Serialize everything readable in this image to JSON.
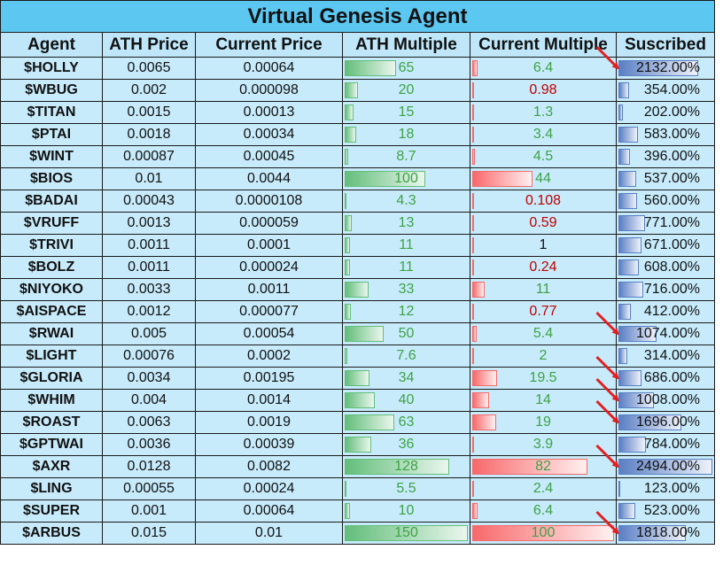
{
  "title": "Virtual Genesis Agent",
  "headers": [
    "Agent",
    "ATH Price",
    "Current Price",
    "ATH Multiple",
    "Current Multiple",
    "Suscribed"
  ],
  "colors": {
    "title_bg": "#5cc8f2",
    "cell_bg": "#c7ebfb",
    "ath_bar": "#63be7b",
    "current_bar": "#f8696b",
    "subscribed_bar": "#5a7fc4",
    "multiple_up_text": "#3ea246",
    "multiple_down_text": "#c00000",
    "arrow": "#e02020"
  },
  "rows": [
    {
      "agent": "$HOLLY",
      "ath_price": "0.0065",
      "current_price": "0.00064",
      "ath_multiple": "65",
      "current_multiple": "6.4",
      "current_color": "green",
      "subscribed": "2132.00%",
      "arrow": true
    },
    {
      "agent": "$WBUG",
      "ath_price": "0.002",
      "current_price": "0.000098",
      "ath_multiple": "20",
      "current_multiple": "0.98",
      "current_color": "red",
      "subscribed": "354.00%",
      "arrow": false
    },
    {
      "agent": "$TITAN",
      "ath_price": "0.0015",
      "current_price": "0.00013",
      "ath_multiple": "15",
      "current_multiple": "1.3",
      "current_color": "green",
      "subscribed": "202.00%",
      "arrow": false
    },
    {
      "agent": "$PTAI",
      "ath_price": "0.0018",
      "current_price": "0.00034",
      "ath_multiple": "18",
      "current_multiple": "3.4",
      "current_color": "green",
      "subscribed": "583.00%",
      "arrow": false
    },
    {
      "agent": "$WINT",
      "ath_price": "0.00087",
      "current_price": "0.00045",
      "ath_multiple": "8.7",
      "current_multiple": "4.5",
      "current_color": "green",
      "subscribed": "396.00%",
      "arrow": false
    },
    {
      "agent": "$BIOS",
      "ath_price": "0.01",
      "current_price": "0.0044",
      "ath_multiple": "100",
      "current_multiple": "44",
      "current_color": "green",
      "subscribed": "537.00%",
      "arrow": false
    },
    {
      "agent": "$BADAI",
      "ath_price": "0.00043",
      "current_price": "0.0000108",
      "ath_multiple": "4.3",
      "current_multiple": "0.108",
      "current_color": "red",
      "subscribed": "560.00%",
      "arrow": false
    },
    {
      "agent": "$VRUFF",
      "ath_price": "0.0013",
      "current_price": "0.000059",
      "ath_multiple": "13",
      "current_multiple": "0.59",
      "current_color": "red",
      "subscribed": "771.00%",
      "arrow": false
    },
    {
      "agent": "$TRIVI",
      "ath_price": "0.0011",
      "current_price": "0.0001",
      "ath_multiple": "11",
      "current_multiple": "1",
      "current_color": "black",
      "subscribed": "671.00%",
      "arrow": false
    },
    {
      "agent": "$BOLZ",
      "ath_price": "0.0011",
      "current_price": "0.000024",
      "ath_multiple": "11",
      "current_multiple": "0.24",
      "current_color": "red",
      "subscribed": "608.00%",
      "arrow": false
    },
    {
      "agent": "$NIYOKO",
      "ath_price": "0.0033",
      "current_price": "0.0011",
      "ath_multiple": "33",
      "current_multiple": "11",
      "current_color": "green",
      "subscribed": "716.00%",
      "arrow": false
    },
    {
      "agent": "$AISPACE",
      "ath_price": "0.0012",
      "current_price": "0.000077",
      "ath_multiple": "12",
      "current_multiple": "0.77",
      "current_color": "red",
      "subscribed": "412.00%",
      "arrow": false
    },
    {
      "agent": "$RWAI",
      "ath_price": "0.005",
      "current_price": "0.00054",
      "ath_multiple": "50",
      "current_multiple": "5.4",
      "current_color": "green",
      "subscribed": "1074.00%",
      "arrow": true
    },
    {
      "agent": "$LIGHT",
      "ath_price": "0.00076",
      "current_price": "0.0002",
      "ath_multiple": "7.6",
      "current_multiple": "2",
      "current_color": "green",
      "subscribed": "314.00%",
      "arrow": false
    },
    {
      "agent": "$GLORIA",
      "ath_price": "0.0034",
      "current_price": "0.00195",
      "ath_multiple": "34",
      "current_multiple": "19.5",
      "current_color": "green",
      "subscribed": "686.00%",
      "arrow": true
    },
    {
      "agent": "$WHIM",
      "ath_price": "0.004",
      "current_price": "0.0014",
      "ath_multiple": "40",
      "current_multiple": "14",
      "current_color": "green",
      "subscribed": "1008.00%",
      "arrow": true
    },
    {
      "agent": "$ROAST",
      "ath_price": "0.0063",
      "current_price": "0.0019",
      "ath_multiple": "63",
      "current_multiple": "19",
      "current_color": "green",
      "subscribed": "1696.00%",
      "arrow": true
    },
    {
      "agent": "$GPTWAI",
      "ath_price": "0.0036",
      "current_price": "0.00039",
      "ath_multiple": "36",
      "current_multiple": "3.9",
      "current_color": "green",
      "subscribed": "784.00%",
      "arrow": false
    },
    {
      "agent": "$AXR",
      "ath_price": "0.0128",
      "current_price": "0.0082",
      "ath_multiple": "128",
      "current_multiple": "82",
      "current_color": "green",
      "subscribed": "2494.00%",
      "arrow": true
    },
    {
      "agent": "$LING",
      "ath_price": "0.00055",
      "current_price": "0.00024",
      "ath_multiple": "5.5",
      "current_multiple": "2.4",
      "current_color": "green",
      "subscribed": "123.00%",
      "arrow": false
    },
    {
      "agent": "$SUPER",
      "ath_price": "0.001",
      "current_price": "0.00064",
      "ath_multiple": "10",
      "current_multiple": "6.4",
      "current_color": "green",
      "subscribed": "523.00%",
      "arrow": false
    },
    {
      "agent": "$ARBUS",
      "ath_price": "0.015",
      "current_price": "0.01",
      "ath_multiple": "150",
      "current_multiple": "100",
      "current_color": "green",
      "subscribed": "1818.00%",
      "arrow": true
    }
  ]
}
